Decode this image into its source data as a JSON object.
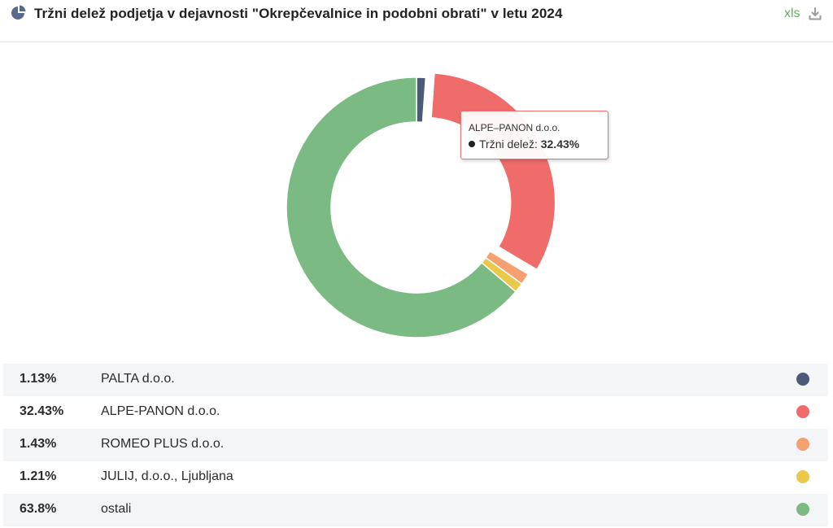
{
  "header": {
    "title": "Tržni delež podjetja v dejavnosti \"Okrepčevalnice in podobni obrati\" v letu 2024",
    "export_label": "xls",
    "chart_icon": "pie-chart-icon",
    "download_icon": "download-icon"
  },
  "chart_data": {
    "type": "pie",
    "variant": "donut",
    "title": "Tržni delež podjetja v dejavnosti \"Okrepčevalnice in podobni obrati\" v letu 2024",
    "series_name": "Tržni delež",
    "unit": "%",
    "slices": [
      {
        "name": "PALTA d.o.o.",
        "value": 1.13,
        "label": "1.13%",
        "color": "#4a5a78",
        "exploded": false
      },
      {
        "name": "ALPE-PANON d.o.o.",
        "value": 32.43,
        "label": "32.43%",
        "color": "#ef6c6a",
        "exploded": true
      },
      {
        "name": "ROMEO PLUS d.o.o.",
        "value": 1.43,
        "label": "1.43%",
        "color": "#f4a070",
        "exploded": false
      },
      {
        "name": "JULIJ, d.o.o., Ljubljana",
        "value": 1.21,
        "label": "1.21%",
        "color": "#eac94a",
        "exploded": false
      },
      {
        "name": "ostali",
        "value": 63.8,
        "label": "63.8%",
        "color": "#7cba84",
        "exploded": false
      }
    ]
  },
  "tooltip": {
    "name": "ALPE–PANON d.o.o.",
    "series_label": "Tržni delež:",
    "value": "32.43%"
  }
}
